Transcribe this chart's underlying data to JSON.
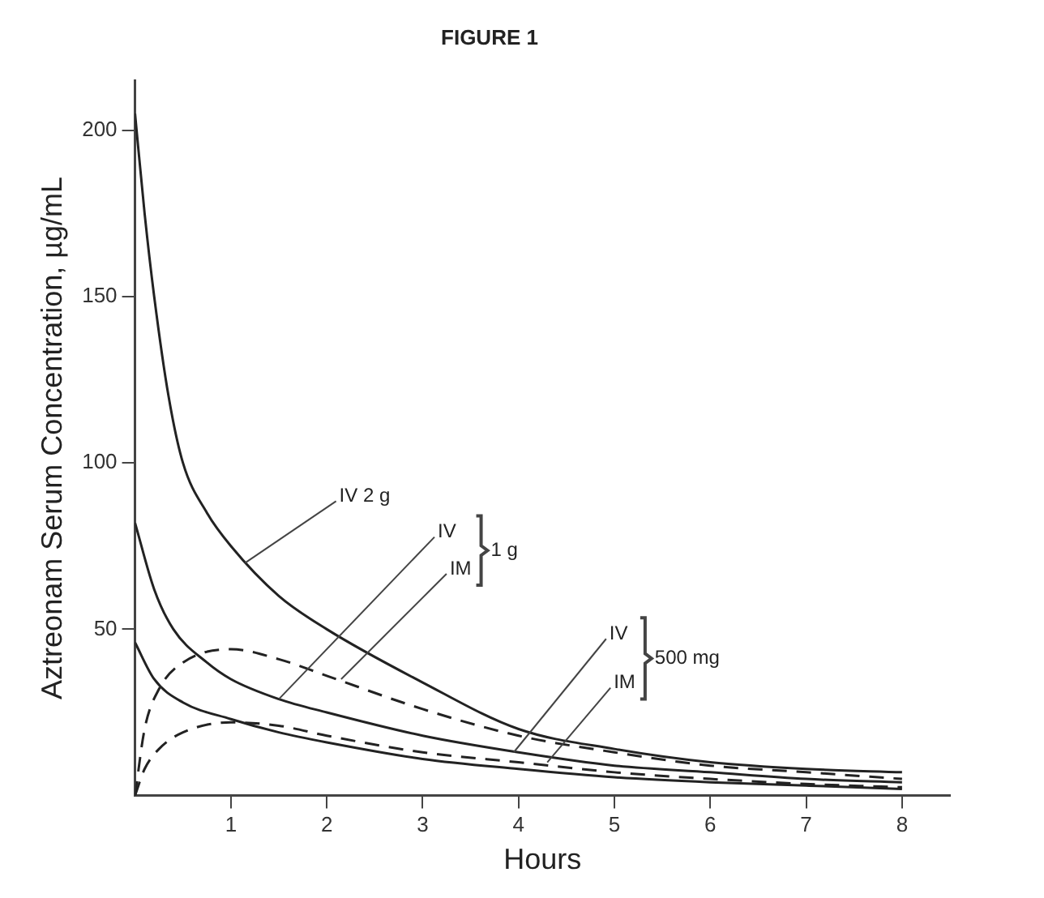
{
  "chart_data": {
    "type": "line",
    "title": "FIGURE 1",
    "xlabel": "Hours",
    "ylabel": "Aztreonam Serum Concentration, µg/mL",
    "xlim": [
      0,
      8.5
    ],
    "ylim": [
      0,
      215
    ],
    "xticks": [
      1,
      2,
      3,
      4,
      5,
      6,
      7,
      8
    ],
    "yticks": [
      50,
      100,
      150,
      200
    ],
    "grid": false,
    "legend": false,
    "marker": "none",
    "series": [
      {
        "color": "#222222",
        "line_style": "solid",
        "x": [
          0,
          0.1,
          0.2,
          0.35,
          0.5,
          0.75,
          1,
          1.5,
          2,
          3,
          4,
          5,
          6,
          7,
          8
        ],
        "values": [
          205,
          175,
          150,
          120,
          100,
          85,
          75,
          60,
          50,
          34,
          20,
          14,
          10,
          8,
          7
        ]
      },
      {
        "color": "#222222",
        "line_style": "solid",
        "x": [
          0,
          0.2,
          0.4,
          0.75,
          1,
          1.5,
          2,
          3,
          4,
          5,
          6,
          7,
          8
        ],
        "values": [
          82,
          62,
          50,
          40,
          35,
          29,
          25,
          18,
          13,
          9,
          7,
          5,
          4
        ]
      },
      {
        "color": "#222222",
        "line_style": "dashed",
        "x": [
          0,
          0.1,
          0.25,
          0.5,
          1,
          1.5,
          2,
          3,
          4,
          5,
          6,
          7,
          8
        ],
        "values": [
          0,
          20,
          32,
          40,
          44,
          41,
          36,
          26,
          18,
          13,
          9,
          7,
          5
        ]
      },
      {
        "color": "#222222",
        "line_style": "solid",
        "x": [
          0,
          0.2,
          0.5,
          1,
          1.5,
          2,
          3,
          4,
          5,
          6,
          7,
          8
        ],
        "values": [
          46,
          35,
          28,
          23,
          19,
          16,
          11,
          8,
          5.5,
          4,
          3,
          2
        ]
      },
      {
        "color": "#222222",
        "line_style": "dashed",
        "x": [
          0,
          0.1,
          0.25,
          0.5,
          1,
          1.5,
          2,
          3,
          4,
          5,
          6,
          7,
          8
        ],
        "values": [
          0,
          8,
          14,
          19,
          22,
          21,
          18,
          13,
          10,
          7,
          5,
          3.5,
          2.5
        ]
      }
    ],
    "annotations": [
      {
        "text": "IV 2 g",
        "x": 1.15,
        "y": 70
      },
      {
        "text": "IV",
        "x": 1.5,
        "y": 29
      },
      {
        "text": "IM",
        "x": 2.15,
        "y": 35
      },
      "1 g",
      {
        "text": "IV",
        "x": 3.95,
        "y": 13
      },
      {
        "text": "IM",
        "x": 4.3,
        "y": 10
      },
      "500 mg"
    ]
  }
}
